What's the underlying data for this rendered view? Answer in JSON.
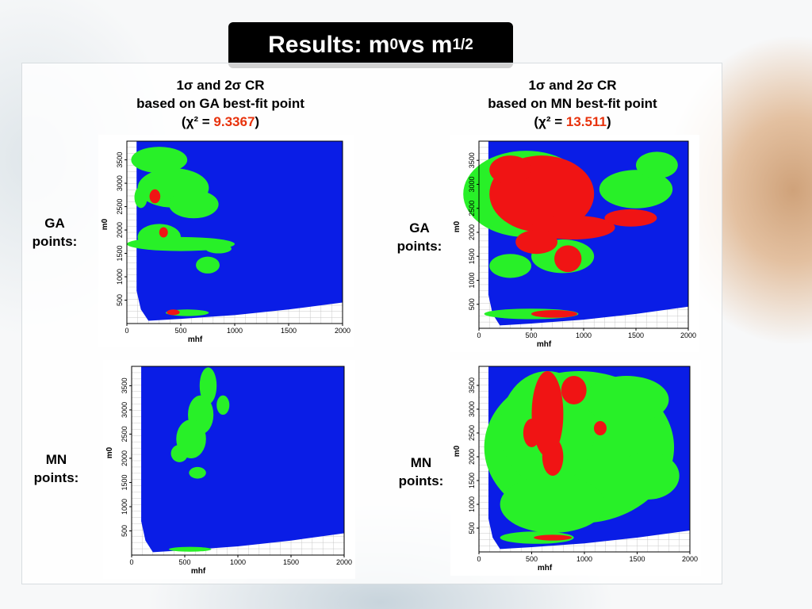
{
  "slide": {
    "title_prefix": "Results: m",
    "title_sub0": "0",
    "title_mid": " vs m",
    "title_sub1": "1/2"
  },
  "columns": [
    {
      "line1": "1σ and 2σ CR",
      "line2": "based on GA best-fit point",
      "chi_prefix": "(χ² = ",
      "chi_value": "9.3367",
      "chi_suffix": ")"
    },
    {
      "line1": "1σ and 2σ CR",
      "line2": "based on MN best-fit point",
      "chi_prefix": "(χ² = ",
      "chi_value": "13.511",
      "chi_suffix": ")"
    }
  ],
  "rows": {
    "ga_label_line1": "GA",
    "ga_label_line2": "points:",
    "mn_label_line1": "MN",
    "mn_label_line2": "points:"
  },
  "colors": {
    "background_region": "#0a1de6",
    "sigma2_region": "#28f028",
    "sigma1_region": "#f01414",
    "chi_value": "#e8320c"
  },
  "chart_data": [
    {
      "type": "heatmap",
      "name": "GA points / GA best-fit",
      "xlabel": "mhf",
      "ylabel": "m0",
      "xlim": [
        0,
        2000
      ],
      "ylim": [
        0,
        3900
      ],
      "xticks": [
        0,
        500,
        1000,
        1500,
        2000
      ],
      "yticks": [
        500,
        1000,
        1500,
        2000,
        2500,
        3000,
        3500
      ],
      "legend": "none",
      "regions": {
        "green": [
          [
            300,
            3500,
            260,
            280
          ],
          [
            430,
            2900,
            330,
            420
          ],
          [
            620,
            2550,
            230,
            300
          ],
          [
            500,
            1700,
            500,
            150
          ],
          [
            300,
            1850,
            200,
            280
          ],
          [
            750,
            1250,
            110,
            180
          ],
          [
            560,
            230,
            200,
            70
          ],
          [
            130,
            2700,
            60,
            230
          ],
          [
            850,
            1600,
            120,
            100
          ]
        ],
        "red": [
          [
            260,
            2720,
            50,
            150
          ],
          [
            340,
            1950,
            40,
            110
          ],
          [
            430,
            240,
            60,
            60
          ]
        ]
      }
    },
    {
      "type": "heatmap",
      "name": "GA points / MN best-fit",
      "xlabel": "mhf",
      "ylabel": "m0",
      "xlim": [
        0,
        2000
      ],
      "ylim": [
        0,
        3900
      ],
      "xticks": [
        0,
        500,
        1000,
        1500,
        2000
      ],
      "yticks": [
        500,
        1000,
        1500,
        2000,
        2500,
        3000,
        3500
      ],
      "legend": "none",
      "regions": {
        "green": [
          [
            450,
            2800,
            600,
            900
          ],
          [
            800,
            1500,
            300,
            350
          ],
          [
            1500,
            2900,
            350,
            400
          ],
          [
            500,
            300,
            450,
            110
          ],
          [
            1700,
            3400,
            200,
            280
          ],
          [
            300,
            1300,
            200,
            250
          ]
        ],
        "red": [
          [
            600,
            2800,
            500,
            800
          ],
          [
            300,
            3300,
            200,
            300
          ],
          [
            900,
            2100,
            400,
            250
          ],
          [
            550,
            1800,
            200,
            250
          ],
          [
            850,
            1450,
            130,
            280
          ],
          [
            720,
            300,
            220,
            80
          ],
          [
            1450,
            2300,
            250,
            180
          ]
        ]
      }
    },
    {
      "type": "heatmap",
      "name": "MN points / GA best-fit",
      "xlabel": "mhf",
      "ylabel": "m0",
      "xlim": [
        0,
        2000
      ],
      "ylim": [
        0,
        3900
      ],
      "xticks": [
        0,
        500,
        1000,
        1500,
        2000
      ],
      "yticks": [
        500,
        1000,
        1500,
        2000,
        2500,
        3000,
        3500
      ],
      "legend": "none",
      "regions": {
        "green": [
          [
            720,
            3500,
            80,
            380
          ],
          [
            650,
            2900,
            120,
            400
          ],
          [
            560,
            2400,
            140,
            400
          ],
          [
            450,
            2100,
            80,
            180
          ],
          [
            860,
            3100,
            60,
            200
          ],
          [
            620,
            1700,
            80,
            120
          ],
          [
            550,
            120,
            200,
            50
          ]
        ],
        "red": []
      }
    },
    {
      "type": "heatmap",
      "name": "MN points / MN best-fit",
      "xlabel": "mhf",
      "ylabel": "m0",
      "xlim": [
        0,
        2000
      ],
      "ylim": [
        0,
        3900
      ],
      "xticks": [
        0,
        500,
        1000,
        1500,
        2000
      ],
      "yticks": [
        500,
        1000,
        1500,
        2000,
        2500,
        3000,
        3500
      ],
      "legend": "none",
      "regions": {
        "green": [
          [
            950,
            2200,
            900,
            1600
          ],
          [
            650,
            2600,
            450,
            1200
          ],
          [
            1400,
            3200,
            400,
            500
          ],
          [
            700,
            1000,
            500,
            600
          ],
          [
            1600,
            1600,
            300,
            500
          ],
          [
            550,
            300,
            350,
            130
          ]
        ],
        "red": [
          [
            650,
            2900,
            150,
            900
          ],
          [
            700,
            2000,
            100,
            400
          ],
          [
            500,
            2500,
            80,
            300
          ],
          [
            900,
            3400,
            120,
            300
          ],
          [
            1150,
            2600,
            60,
            150
          ],
          [
            700,
            300,
            180,
            60
          ]
        ]
      }
    }
  ]
}
